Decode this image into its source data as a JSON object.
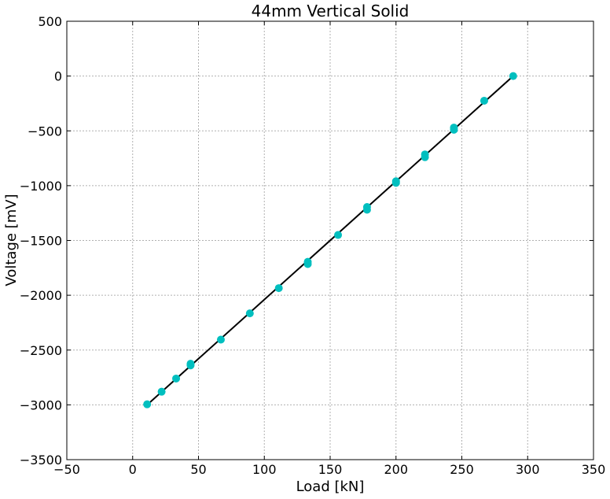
{
  "chart_data": {
    "type": "scatter",
    "title": "44mm Vertical Solid",
    "xlabel": "Load [kN]",
    "ylabel": "Voltage [mV]",
    "xlim": [
      -50,
      350
    ],
    "ylim": [
      -3500,
      500
    ],
    "xticks": [
      -50,
      0,
      50,
      100,
      150,
      200,
      250,
      300,
      350
    ],
    "yticks": [
      -3500,
      -3000,
      -2500,
      -2000,
      -1500,
      -1000,
      -500,
      0,
      500
    ],
    "grid": true,
    "point_color": "#00bfbf",
    "line_color": "#000000",
    "series": [
      {
        "kind": "points",
        "x": [
          11,
          22,
          33,
          44,
          44,
          67,
          89,
          111,
          133,
          133,
          156,
          178,
          178,
          200,
          200,
          222,
          222,
          244,
          244,
          267,
          289
        ],
        "y": [
          -2995,
          -2880,
          -2760,
          -2625,
          -2640,
          -2405,
          -2165,
          -1935,
          -1695,
          -1715,
          -1450,
          -1195,
          -1220,
          -960,
          -975,
          -715,
          -740,
          -470,
          -490,
          -225,
          0
        ]
      },
      {
        "kind": "fit-line",
        "x": [
          11,
          289
        ],
        "y": [
          -3000,
          0
        ]
      }
    ]
  }
}
